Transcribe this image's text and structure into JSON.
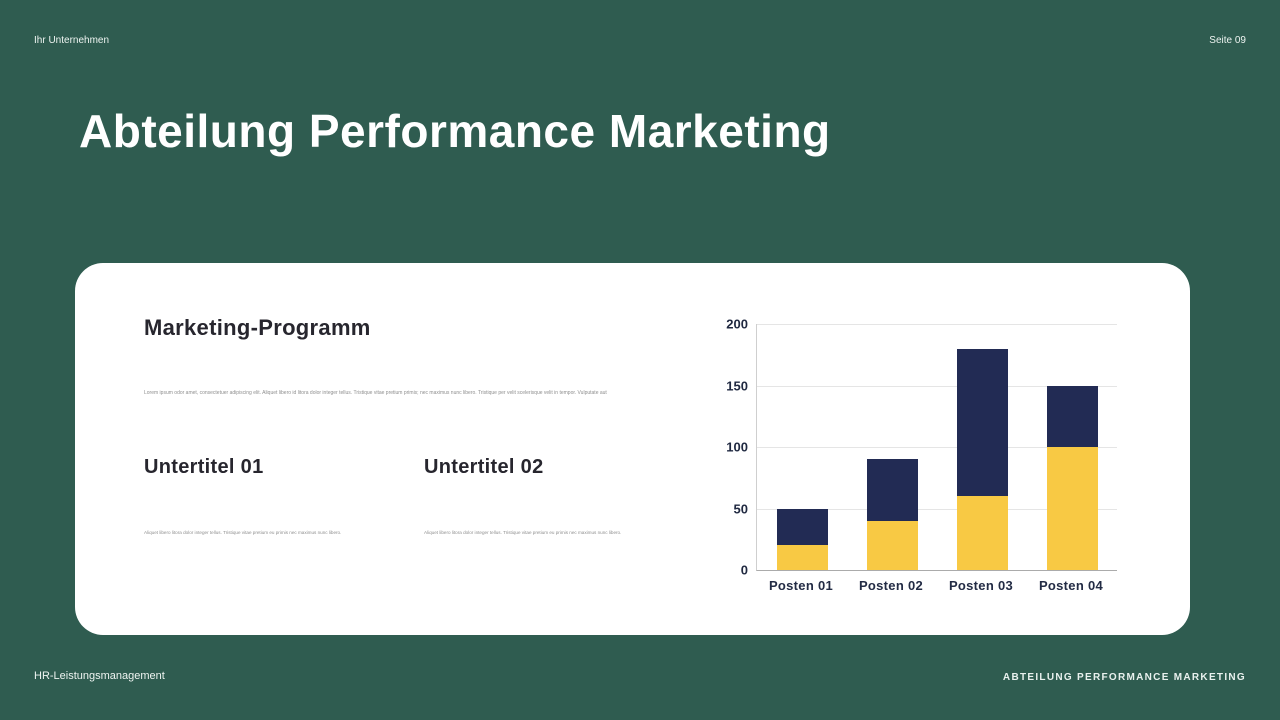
{
  "header": {
    "company": "Ihr Unternehmen",
    "page": "Seite 09"
  },
  "title": "Abteilung Performance Marketing",
  "card": {
    "heading": "Marketing-Programm",
    "paragraph": "Lorem ipsum odor amet, consectetuer adipiscing elit. Aliquet libero id litora dolor integer tellus. Tristique vitae pretium primis; nec maximus nunc libero. Tristique per velit scelerisque velit in tempor. Vulputate aut",
    "subsections": [
      {
        "title": "Untertitel 01",
        "text": "Aliquet libero litora dolor integer tellus. Tristique vitae pretium eu primis nec maximus nunc libero."
      },
      {
        "title": "Untertitel 02",
        "text": "Aliquet libero litora dolor integer tellus. Tristique vitae pretium eu primis nec maximus nunc libero."
      }
    ]
  },
  "chart_data": {
    "type": "bar",
    "stacked": true,
    "title": "",
    "xlabel": "",
    "ylabel": "",
    "categories": [
      "Posten 01",
      "Posten 02",
      "Posten 03",
      "Posten 04"
    ],
    "series": [
      {
        "name": "series-1",
        "color": "#f8c944",
        "values": [
          20,
          40,
          60,
          100
        ]
      },
      {
        "name": "series-2",
        "color": "#222b54",
        "values": [
          30,
          50,
          120,
          50
        ]
      }
    ],
    "stack_totals": [
      50,
      90,
      180,
      150
    ],
    "ylim": [
      0,
      200
    ],
    "yticks": [
      0,
      50,
      100,
      150,
      200
    ],
    "grid": true,
    "legend": "none"
  },
  "footer": {
    "left": "HR-Leistungsmanagement",
    "right": "ABTEILUNG PERFORMANCE MARKETING"
  },
  "colors": {
    "background": "#2f5c50",
    "card": "#ffffff",
    "accent_yellow": "#f8c944",
    "accent_navy": "#222b54"
  }
}
